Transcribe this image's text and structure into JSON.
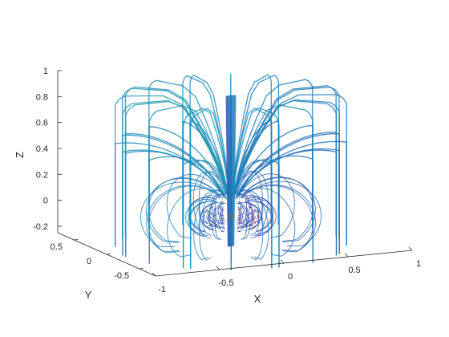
{
  "chart_data": {
    "type": "streamline3d",
    "title": "",
    "xlabel": "X",
    "ylabel": "Y",
    "zlabel": "Z",
    "xlim": [
      -1,
      1
    ],
    "ylim": [
      -0.75,
      0.75
    ],
    "zlim": [
      -0.25,
      1
    ],
    "x_ticks": [
      -1,
      -0.5,
      0,
      0.5,
      1
    ],
    "x_tick_labels": [
      "-1",
      "-0.5",
      "0",
      "0.5",
      "1"
    ],
    "y_ticks": [
      -0.5,
      0,
      0.5
    ],
    "y_tick_labels": [
      "-0.5",
      "0",
      "0.5"
    ],
    "z_ticks": [
      -0.2,
      0,
      0.2,
      0.4,
      0.6,
      0.8,
      1
    ],
    "z_tick_labels": [
      "-0.2",
      "0",
      "0.2",
      "0.4",
      "0.6",
      "0.8",
      "1"
    ],
    "grid": false,
    "colormap": [
      "#5e2a8c",
      "#3b4fa8",
      "#1f6db8",
      "#1e8fb8",
      "#2aa6b0"
    ],
    "origin_marker": [
      0,
      0,
      0
    ],
    "series": {
      "azimuth_count": 24,
      "inclination_deg": [
        10,
        20,
        30,
        45,
        60,
        75
      ],
      "field_line_max_z": 0.9,
      "field_line_min_z": -0.22
    }
  }
}
